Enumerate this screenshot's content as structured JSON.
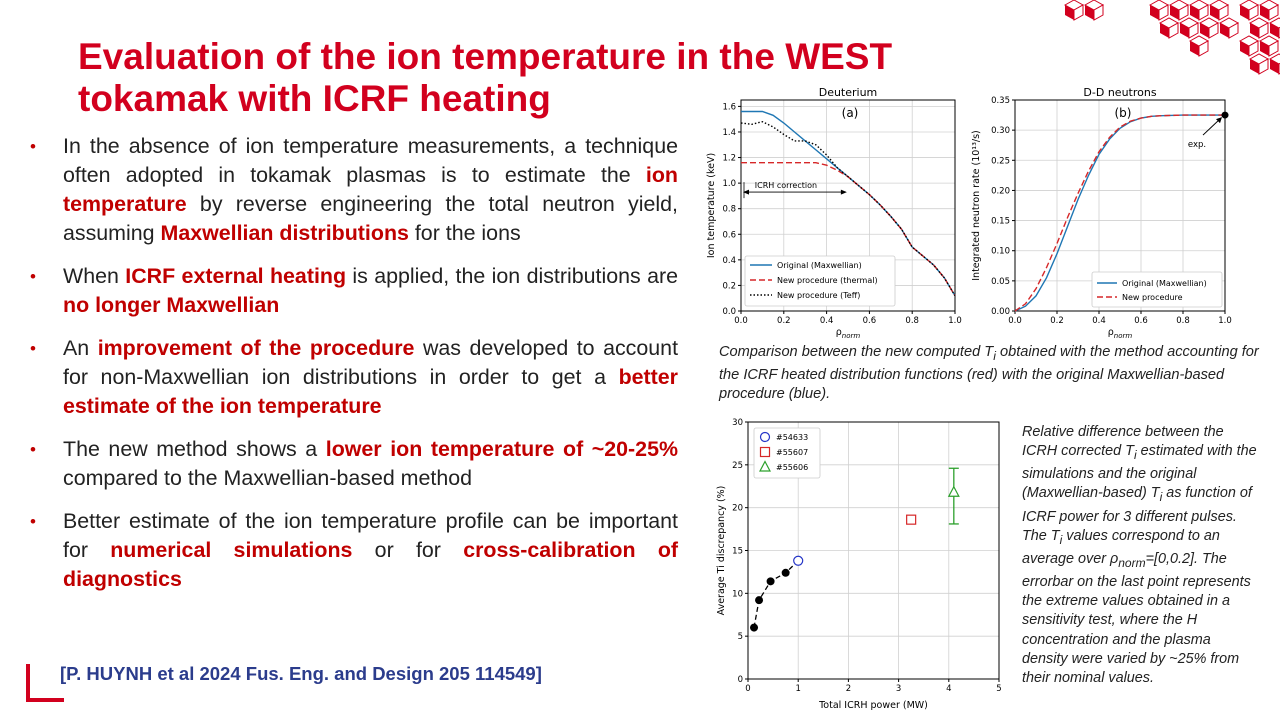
{
  "title": {
    "line1": "Evaluation of the ion temperature in the WEST",
    "line2": "tokamak with ICRF heating"
  },
  "bullets": [
    {
      "segments": [
        {
          "text": "In the absence of ion temperature measurements, a technique often adopted in tokamak plasmas is to estimate the ",
          "hl": false
        },
        {
          "text": "ion temperature",
          "hl": true
        },
        {
          "text": " by reverse engineering the total neutron yield, assuming ",
          "hl": false
        },
        {
          "text": "Maxwellian distributions",
          "hl": true
        },
        {
          "text": " for the ions",
          "hl": false
        }
      ]
    },
    {
      "segments": [
        {
          "text": "When ",
          "hl": false
        },
        {
          "text": "ICRF external heating",
          "hl": true
        },
        {
          "text": " is applied, the ion distributions are ",
          "hl": false
        },
        {
          "text": "no longer Maxwellian",
          "hl": true
        }
      ]
    },
    {
      "segments": [
        {
          "text": "An ",
          "hl": false
        },
        {
          "text": "improvement of the procedure",
          "hl": true
        },
        {
          "text": " was developed to account for non-Maxwellian ion distributions in order to get a ",
          "hl": false
        },
        {
          "text": "better estimate of the ion temperature",
          "hl": true
        }
      ]
    },
    {
      "segments": [
        {
          "text": "The new method shows a ",
          "hl": false
        },
        {
          "text": "lower ion temperature of ~20-25%",
          "hl": true
        },
        {
          "text": " compared to the Maxwellian-based method",
          "hl": false
        }
      ]
    },
    {
      "segments": [
        {
          "text": "Better estimate of the ion temperature profile can be important for ",
          "hl": false
        },
        {
          "text": "numerical simulations",
          "hl": true
        },
        {
          "text": " or for ",
          "hl": false
        },
        {
          "text": "cross-calibration of diagnostics",
          "hl": true
        }
      ]
    }
  ],
  "citation": "[P. HUYNH  et al 2024 Fus. Eng. and Design 205 114549]",
  "caption1": {
    "a": "Comparison between the new computed ",
    "sym": "T",
    "sub": "i",
    "b": " obtained with the method accounting for the ICRF heated distribution functions (red) with the original Maxwellian-based procedure (blue)."
  },
  "caption2": {
    "a": "Relative difference between the ICRH corrected ",
    "sym1": "T",
    "sub1": "i",
    "b": " estimated with the simulations and the original (Maxwellian-based) ",
    "sym2": "T",
    "sub2": "i",
    "c": " as function of ICRF power for 3 different pulses. The ",
    "sym3": "T",
    "sub3": "i",
    "d": " values correspond to an average over ",
    "rho": "ρ",
    "rhosub": "norm",
    "e": "=[0,0.2]. The errorbar on the last point represents the extreme values obtained in a sensitivity test, where the H concentration and the plasma density were varied by ~25% from their nominal values."
  },
  "colors": {
    "title": "#d2001e",
    "highlight": "#c00000",
    "citation": "#2b3c8c",
    "maxwellian": "#1f77b4",
    "new_thermal": "#d62728",
    "new_teff": "#000000",
    "p54633": "#2535c7",
    "p55607": "#d62728",
    "p55606": "#2ca02c"
  },
  "chart_data": [
    {
      "type": "line",
      "title": "Deuterium",
      "panel": "(a)",
      "xlabel": "ρnorm",
      "ylabel": "Ion temperature (keV)",
      "xlim": [
        0.0,
        1.0
      ],
      "ylim": [
        0.0,
        1.65
      ],
      "xticks": [
        "0.0",
        "0.2",
        "0.4",
        "0.6",
        "0.8",
        "1.0"
      ],
      "yticks": [
        "0.0",
        "0.2",
        "0.4",
        "0.6",
        "0.8",
        "1.0",
        "1.2",
        "1.4",
        "1.6"
      ],
      "grid": true,
      "legend_position": "lower-left",
      "annotation": "ICRH correction",
      "series": [
        {
          "name": "Original (Maxwellian)",
          "style": "solid",
          "x": [
            0.0,
            0.05,
            0.1,
            0.15,
            0.2,
            0.25,
            0.3,
            0.35,
            0.4,
            0.45,
            0.5,
            0.55,
            0.6,
            0.65,
            0.7,
            0.75,
            0.8,
            0.85,
            0.9,
            0.95,
            1.0
          ],
          "y": [
            1.56,
            1.56,
            1.56,
            1.53,
            1.47,
            1.4,
            1.33,
            1.26,
            1.19,
            1.12,
            1.05,
            0.98,
            0.91,
            0.83,
            0.74,
            0.64,
            0.5,
            0.43,
            0.36,
            0.26,
            0.12
          ]
        },
        {
          "name": "New procedure (thermal)",
          "style": "dashed",
          "x": [
            0.0,
            0.05,
            0.1,
            0.15,
            0.2,
            0.25,
            0.3,
            0.35,
            0.4,
            0.45,
            0.5,
            0.55,
            0.6,
            0.65,
            0.7,
            0.75,
            0.8,
            0.85,
            0.9,
            0.95,
            1.0
          ],
          "y": [
            1.16,
            1.16,
            1.16,
            1.16,
            1.16,
            1.16,
            1.16,
            1.16,
            1.14,
            1.1,
            1.05,
            0.98,
            0.91,
            0.83,
            0.74,
            0.64,
            0.5,
            0.43,
            0.36,
            0.26,
            0.12
          ]
        },
        {
          "name": "New procedure (Teff)",
          "style": "dotted",
          "x": [
            0.0,
            0.05,
            0.1,
            0.15,
            0.2,
            0.25,
            0.3,
            0.35,
            0.4,
            0.45,
            0.5,
            0.55,
            0.6,
            0.65,
            0.7,
            0.75,
            0.8,
            0.85,
            0.9,
            0.95,
            1.0
          ],
          "y": [
            1.47,
            1.46,
            1.48,
            1.44,
            1.38,
            1.33,
            1.33,
            1.3,
            1.22,
            1.12,
            1.05,
            0.98,
            0.91,
            0.83,
            0.74,
            0.64,
            0.5,
            0.43,
            0.36,
            0.26,
            0.12
          ]
        }
      ]
    },
    {
      "type": "line",
      "title": "D-D neutrons",
      "panel": "(b)",
      "xlabel": "ρnorm",
      "ylabel": "Integrated neutron rate (10¹³/s)",
      "xlim": [
        0.0,
        1.0
      ],
      "ylim": [
        0.0,
        0.35
      ],
      "xticks": [
        "0.0",
        "0.2",
        "0.4",
        "0.6",
        "0.8",
        "1.0"
      ],
      "yticks": [
        "0.00",
        "0.05",
        "0.10",
        "0.15",
        "0.20",
        "0.25",
        "0.30",
        "0.35"
      ],
      "grid": true,
      "legend_position": "lower-right",
      "annotation": "exp.",
      "exp_point": {
        "x": 1.0,
        "y": 0.325
      },
      "series": [
        {
          "name": "Original (Maxwellian)",
          "style": "solid",
          "x": [
            0.0,
            0.05,
            0.1,
            0.15,
            0.2,
            0.25,
            0.3,
            0.35,
            0.4,
            0.45,
            0.5,
            0.55,
            0.6,
            0.65,
            0.7,
            0.8,
            0.9,
            1.0
          ],
          "y": [
            0.0,
            0.008,
            0.025,
            0.055,
            0.095,
            0.14,
            0.185,
            0.225,
            0.26,
            0.285,
            0.303,
            0.314,
            0.32,
            0.323,
            0.324,
            0.325,
            0.325,
            0.325
          ]
        },
        {
          "name": "New procedure",
          "style": "dashed",
          "x": [
            0.0,
            0.05,
            0.1,
            0.15,
            0.2,
            0.25,
            0.3,
            0.35,
            0.4,
            0.45,
            0.5,
            0.55,
            0.6,
            0.65,
            0.7,
            0.8,
            0.9,
            1.0
          ],
          "y": [
            0.0,
            0.012,
            0.037,
            0.072,
            0.112,
            0.155,
            0.195,
            0.232,
            0.264,
            0.288,
            0.305,
            0.315,
            0.32,
            0.323,
            0.324,
            0.325,
            0.325,
            0.325
          ]
        }
      ]
    },
    {
      "type": "scatter",
      "xlabel": "Total ICRH power (MW)",
      "ylabel": "Average Ti discrepancy (%)",
      "xlim": [
        0,
        5
      ],
      "ylim": [
        0,
        30
      ],
      "xticks": [
        "0",
        "1",
        "2",
        "3",
        "4",
        "5"
      ],
      "yticks": [
        "0",
        "5",
        "10",
        "15",
        "20",
        "25",
        "30"
      ],
      "grid": true,
      "legend_position": "top-left",
      "black_points": {
        "x": [
          0.12,
          0.22,
          0.45,
          0.75
        ],
        "y": [
          6.0,
          9.2,
          11.4,
          12.4
        ]
      },
      "series": [
        {
          "name": "#54633",
          "marker": "circle",
          "x": [
            1.0
          ],
          "y": [
            13.8
          ]
        },
        {
          "name": "#55607",
          "marker": "square",
          "x": [
            3.25
          ],
          "y": [
            18.6
          ]
        },
        {
          "name": "#55606",
          "marker": "triangle",
          "x": [
            4.1
          ],
          "y": [
            21.8
          ],
          "err_low": 18.1,
          "err_high": 24.6
        }
      ]
    }
  ]
}
